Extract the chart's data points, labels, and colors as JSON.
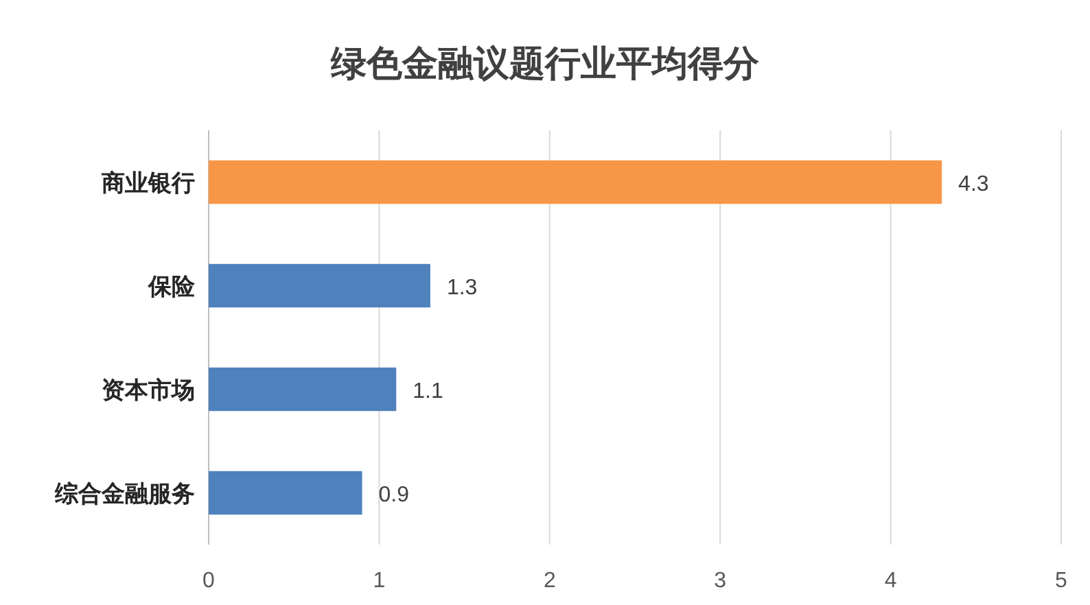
{
  "chart_data": {
    "type": "bar",
    "orientation": "horizontal",
    "title": "绿色金融议题行业平均得分",
    "categories": [
      "商业银行",
      "保险",
      "资本市场",
      "综合金融服务"
    ],
    "values": [
      4.3,
      1.3,
      1.1,
      0.9
    ],
    "colors": [
      "#f79646",
      "#4f81bd",
      "#4f81bd",
      "#4f81bd"
    ],
    "xlim": [
      0,
      5
    ],
    "xticks": [
      0,
      1,
      2,
      3,
      4,
      5
    ],
    "grid": "x",
    "data_labels": true
  }
}
